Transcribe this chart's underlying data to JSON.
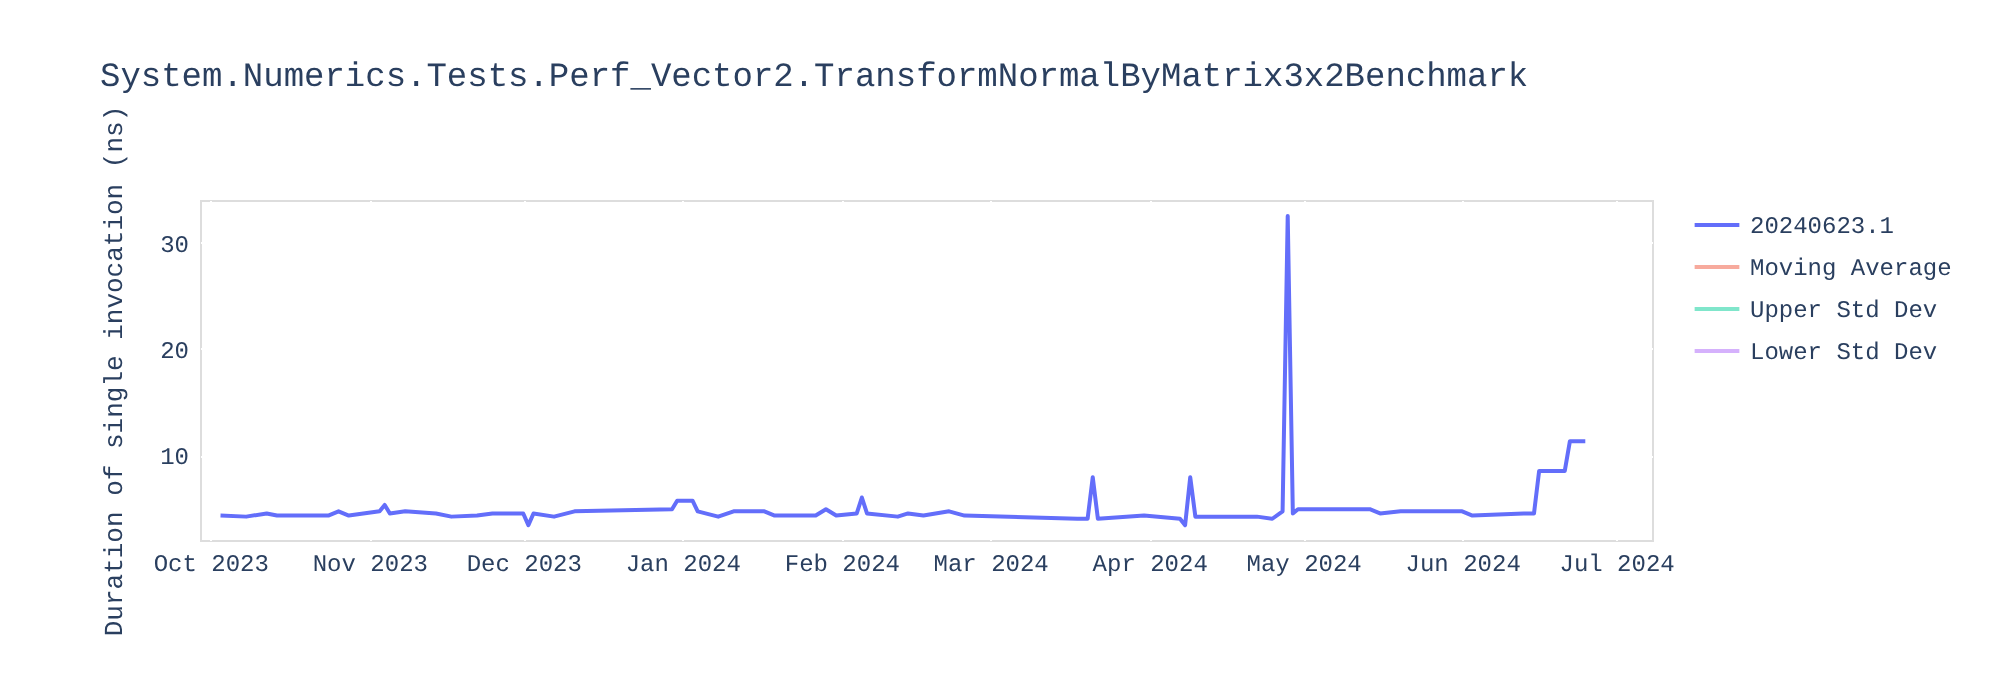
{
  "chart_data": {
    "type": "line",
    "title": "System.Numerics.Tests.Perf_Vector2.TransformNormalByMatrix3x2Benchmark",
    "ylabel": "Duration of single invocation (ns)",
    "x": [
      "2023-10-03",
      "2023-10-08",
      "2023-10-12",
      "2023-10-14",
      "2023-10-24",
      "2023-10-26",
      "2023-10-28",
      "2023-11-03",
      "2023-11-04",
      "2023-11-05",
      "2023-11-08",
      "2023-11-14",
      "2023-11-17",
      "2023-11-22",
      "2023-11-25",
      "2023-12-01",
      "2023-12-02",
      "2023-12-03",
      "2023-12-07",
      "2023-12-11",
      "2023-12-30",
      "2023-12-31",
      "2024-01-03",
      "2024-01-04",
      "2024-01-08",
      "2024-01-11",
      "2024-01-17",
      "2024-01-19",
      "2024-01-27",
      "2024-01-29",
      "2024-01-31",
      "2024-02-04",
      "2024-02-05",
      "2024-02-06",
      "2024-02-12",
      "2024-02-14",
      "2024-02-17",
      "2024-02-22",
      "2024-02-25",
      "2024-03-18",
      "2024-03-20",
      "2024-03-21",
      "2024-03-22",
      "2024-03-31",
      "2024-04-07",
      "2024-04-08",
      "2024-04-09",
      "2024-04-10",
      "2024-04-22",
      "2024-04-25",
      "2024-04-27",
      "2024-04-28",
      "2024-04-29",
      "2024-04-30",
      "2024-05-14",
      "2024-05-16",
      "2024-05-20",
      "2024-06-01",
      "2024-06-03",
      "2024-06-13",
      "2024-06-15",
      "2024-06-16",
      "2024-06-21",
      "2024-06-22",
      "2024-06-25"
    ],
    "series": [
      {
        "name": "20240623.1",
        "color": "#636efa",
        "values": [
          4.3,
          4.2,
          4.5,
          4.3,
          4.3,
          4.7,
          4.3,
          4.7,
          5.3,
          4.5,
          4.7,
          4.5,
          4.2,
          4.3,
          4.5,
          4.5,
          3.4,
          4.5,
          4.2,
          4.7,
          4.9,
          5.7,
          5.7,
          4.7,
          4.2,
          4.7,
          4.7,
          4.3,
          4.3,
          4.9,
          4.3,
          4.5,
          6.0,
          4.5,
          4.2,
          4.5,
          4.3,
          4.7,
          4.3,
          4.0,
          4.0,
          7.9,
          4.0,
          4.3,
          4.0,
          3.4,
          7.9,
          4.2,
          4.2,
          4.0,
          4.7,
          32.5,
          4.5,
          4.9,
          4.9,
          4.5,
          4.7,
          4.7,
          4.3,
          4.5,
          4.5,
          8.5,
          8.5,
          11.3,
          11.3
        ]
      },
      {
        "name": "Moving Average",
        "color": "#f7aa9d",
        "values": [
          null,
          null,
          null,
          null,
          null,
          null,
          null,
          null,
          null,
          null,
          null,
          null,
          null,
          null,
          null,
          null,
          null,
          null,
          null,
          null,
          null,
          null,
          null,
          null,
          null,
          null,
          null,
          null,
          null,
          null,
          null,
          null,
          null,
          null,
          null,
          null,
          null,
          null,
          null,
          null,
          null,
          null,
          null,
          null,
          null,
          null,
          null,
          null,
          null,
          null,
          null,
          null,
          null,
          null,
          null,
          null,
          null,
          null,
          null,
          null,
          null,
          null,
          null,
          null,
          null
        ]
      },
      {
        "name": "Upper Std Dev",
        "color": "#80e6cb",
        "values": [
          null,
          null,
          null,
          null,
          null,
          null,
          null,
          null,
          null,
          null,
          null,
          null,
          null,
          null,
          null,
          null,
          null,
          null,
          null,
          null,
          null,
          null,
          null,
          null,
          null,
          null,
          null,
          null,
          null,
          null,
          null,
          null,
          null,
          null,
          null,
          null,
          null,
          null,
          null,
          null,
          null,
          null,
          null,
          null,
          null,
          null,
          null,
          null,
          null,
          null,
          null,
          null,
          null,
          null,
          null,
          null,
          null,
          null,
          null,
          null,
          null,
          null,
          null,
          null,
          null
        ]
      },
      {
        "name": "Lower Std Dev",
        "color": "#d5b1fc",
        "values": [
          null,
          null,
          null,
          null,
          null,
          null,
          null,
          null,
          null,
          null,
          null,
          null,
          null,
          null,
          null,
          null,
          null,
          null,
          null,
          null,
          null,
          null,
          null,
          null,
          null,
          null,
          null,
          null,
          null,
          null,
          null,
          null,
          null,
          null,
          null,
          null,
          null,
          null,
          null,
          null,
          null,
          null,
          null,
          null,
          null,
          null,
          null,
          null,
          null,
          null,
          null,
          null,
          null,
          null,
          null,
          null,
          null,
          null,
          null,
          null,
          null,
          null,
          null,
          null,
          null
        ]
      }
    ],
    "xlim": [
      "2023-09-29",
      "2024-07-08"
    ],
    "xticks": [
      {
        "value": "2023-10-01",
        "label": "Oct 2023"
      },
      {
        "value": "2023-11-01",
        "label": "Nov 2023"
      },
      {
        "value": "2023-12-01",
        "label": "Dec 2023"
      },
      {
        "value": "2024-01-01",
        "label": "Jan 2024"
      },
      {
        "value": "2024-02-01",
        "label": "Feb 2024"
      },
      {
        "value": "2024-03-01",
        "label": "Mar 2024"
      },
      {
        "value": "2024-04-01",
        "label": "Apr 2024"
      },
      {
        "value": "2024-05-01",
        "label": "May 2024"
      },
      {
        "value": "2024-06-01",
        "label": "Jun 2024"
      },
      {
        "value": "2024-07-01",
        "label": "Jul 2024"
      }
    ],
    "ylim": [
      2,
      34
    ],
    "yticks": [
      10,
      20,
      30
    ],
    "grid": true,
    "legend": "right",
    "marker": "none",
    "line_style": "solid"
  }
}
